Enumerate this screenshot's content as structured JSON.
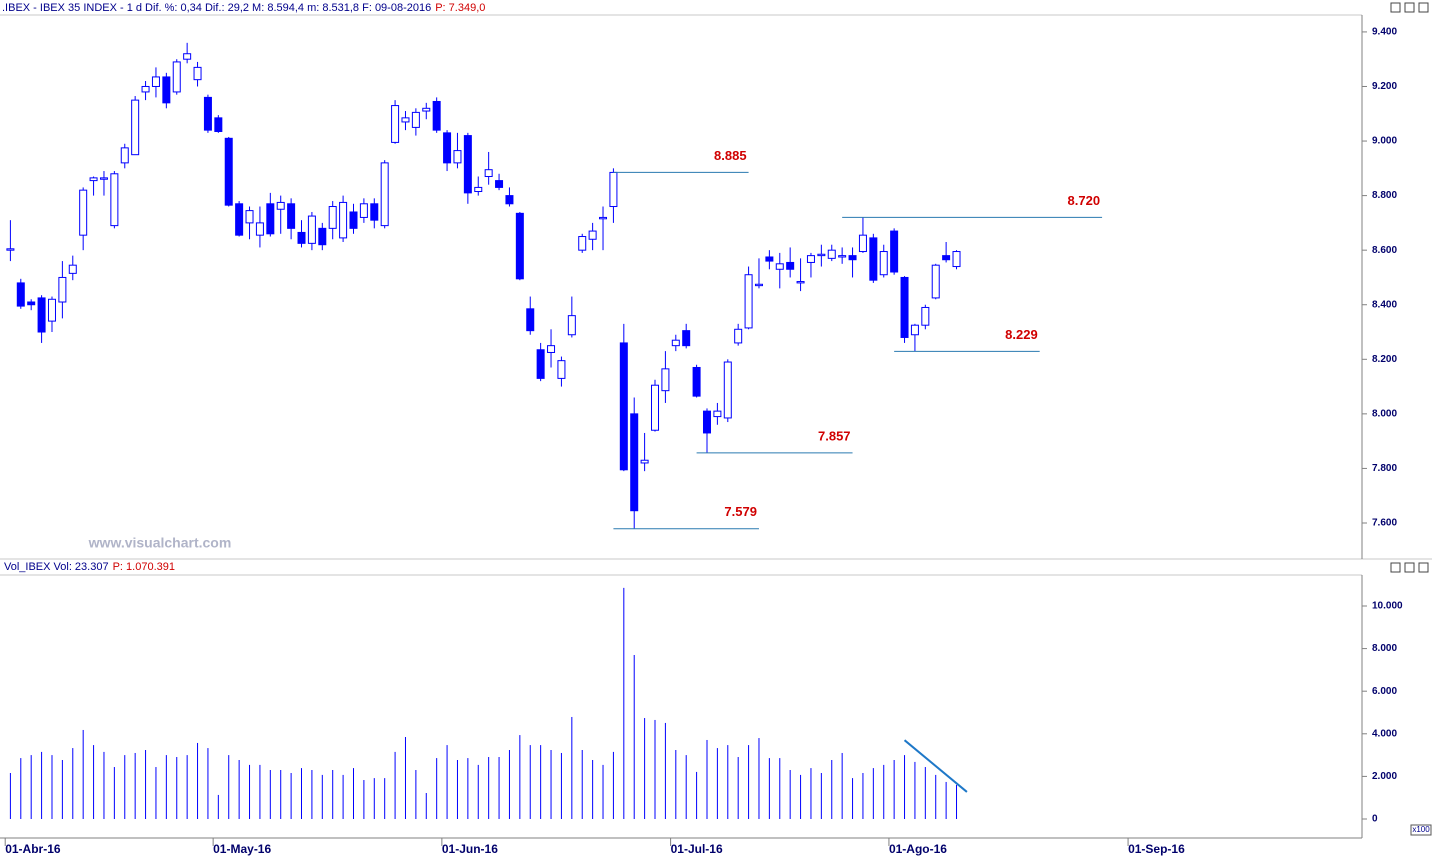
{
  "header": {
    "text": ".IBEX - IBEX 35 INDEX -  1 d  Dif. %: 0,34  Dif.: 29,2  M: 8.594,4  m: 8.531,8  F: 09-08-2016",
    "price": "P: 7.349,0"
  },
  "volume_header": {
    "text": "Vol_IBEX Vol: 23.307",
    "price": "P: 1.070.391"
  },
  "watermark": "www.visualchart.com",
  "unit_label": "x100",
  "chart_data": [
    {
      "type": "candlestick",
      "color": "#0000ff",
      "level_color": "#2a7ab0",
      "xlim": [
        -1,
        130
      ],
      "ylim": [
        7468,
        9462
      ],
      "yticks": [
        {
          "value": 9400,
          "label": "9.400"
        },
        {
          "value": 9200,
          "label": "9.200"
        },
        {
          "value": 9000,
          "label": "9.000"
        },
        {
          "value": 8800,
          "label": "8.800"
        },
        {
          "value": 8600,
          "label": "8.600"
        },
        {
          "value": 8400,
          "label": "8.400"
        },
        {
          "value": 8200,
          "label": "8.200"
        },
        {
          "value": 8000,
          "label": "8.000"
        },
        {
          "value": 7800,
          "label": "7.800"
        },
        {
          "value": 7600,
          "label": "7.600"
        }
      ],
      "open": [
        8600,
        8480,
        8410,
        8425,
        8340,
        8410,
        8515,
        8655,
        8855,
        8860,
        8690,
        8920,
        8950,
        9180,
        9200,
        9235,
        9180,
        9300,
        9225,
        9160,
        9085,
        9010,
        8770,
        8700,
        8655,
        8770,
        8750,
        8770,
        8665,
        8625,
        8680,
        8680,
        8645,
        8740,
        8720,
        8770,
        8690,
        8995,
        9070,
        9050,
        9110,
        9145,
        9030,
        8920,
        9020,
        8815,
        8870,
        8855,
        8800,
        8735,
        8385,
        8235,
        8225,
        8130,
        8290,
        8600,
        8640,
        8715,
        8760,
        8260,
        8000,
        7820,
        7940,
        8085,
        8250,
        8305,
        8170,
        8010,
        7990,
        7985,
        8260,
        8315,
        8470,
        8575,
        8530,
        8555,
        8480,
        8555,
        8580,
        8570,
        8575,
        8580,
        8595,
        8645,
        8510,
        8670,
        8500,
        8290,
        8325,
        8425,
        8580,
        8540
      ],
      "high": [
        8710,
        8495,
        8420,
        8435,
        8430,
        8560,
        8580,
        8830,
        8870,
        8890,
        8890,
        8990,
        9165,
        9220,
        9270,
        9250,
        9300,
        9360,
        9290,
        9170,
        9095,
        9015,
        8780,
        8760,
        8760,
        8810,
        8800,
        8790,
        8710,
        8740,
        8700,
        8780,
        8800,
        8770,
        8790,
        8790,
        8930,
        9150,
        9110,
        9120,
        9140,
        9160,
        9040,
        9030,
        9030,
        8870,
        8960,
        8880,
        8830,
        8740,
        8430,
        8260,
        8310,
        8210,
        8430,
        8660,
        8700,
        8760,
        8900,
        8330,
        8060,
        7930,
        8125,
        8230,
        8290,
        8330,
        8180,
        8020,
        8040,
        8200,
        8330,
        8540,
        8570,
        8600,
        8590,
        8610,
        8570,
        8590,
        8620,
        8620,
        8610,
        8610,
        8720,
        8660,
        8620,
        8680,
        8505,
        8330,
        8400,
        8550,
        8630,
        8600
      ],
      "low": [
        8560,
        8385,
        8380,
        8260,
        8300,
        8350,
        8490,
        8600,
        8800,
        8800,
        8680,
        8900,
        8950,
        9150,
        9160,
        9120,
        9170,
        9285,
        9200,
        9030,
        9030,
        8760,
        8650,
        8640,
        8610,
        8650,
        8660,
        8640,
        8610,
        8600,
        8600,
        8640,
        8630,
        8660,
        8700,
        8680,
        8680,
        8990,
        9040,
        9020,
        9080,
        9030,
        8890,
        8900,
        8770,
        8800,
        8840,
        8820,
        8760,
        8490,
        8290,
        8120,
        8170,
        8100,
        8280,
        8590,
        8600,
        8600,
        8700,
        7790,
        7579,
        7790,
        7935,
        8040,
        8230,
        8240,
        8060,
        7857,
        7960,
        7970,
        8250,
        8310,
        8460,
        8530,
        8460,
        8500,
        8450,
        8500,
        8540,
        8560,
        8550,
        8500,
        8590,
        8480,
        8500,
        8510,
        8260,
        8229,
        8310,
        8420,
        8555,
        8530
      ],
      "close": [
        8605,
        8395,
        8400,
        8300,
        8420,
        8500,
        8545,
        8820,
        8865,
        8865,
        8880,
        8975,
        9150,
        9200,
        9235,
        9140,
        9290,
        9320,
        9270,
        9040,
        9035,
        8765,
        8655,
        8745,
        8700,
        8660,
        8775,
        8680,
        8625,
        8725,
        8620,
        8760,
        8775,
        8680,
        8770,
        8710,
        8920,
        9130,
        9085,
        9105,
        9120,
        9040,
        8920,
        8965,
        8810,
        8830,
        8895,
        8830,
        8770,
        8495,
        8305,
        8130,
        8250,
        8195,
        8360,
        8650,
        8670,
        8720,
        8885,
        7795,
        7645,
        7830,
        8105,
        8165,
        8270,
        8250,
        8065,
        7930,
        8010,
        8190,
        8310,
        8510,
        8475,
        8560,
        8550,
        8530,
        8485,
        8580,
        8585,
        8600,
        8580,
        8565,
        8655,
        8490,
        8595,
        8520,
        8280,
        8325,
        8390,
        8545,
        8565,
        8595
      ],
      "levels": [
        {
          "value": 8885,
          "label": "8.885",
          "start": 58,
          "end": 71
        },
        {
          "value": 8720,
          "label": "8.720",
          "start": 80,
          "end": 105
        },
        {
          "value": 8229,
          "label": "8.229",
          "start": 85,
          "end": 99
        },
        {
          "value": 7857,
          "label": "7.857",
          "start": 66,
          "end": 81
        },
        {
          "value": 7579,
          "label": "7.579",
          "start": 58,
          "end": 72
        }
      ]
    },
    {
      "type": "bar",
      "color": "#0000ff",
      "trend_color": "#1e78c8",
      "xlim": [
        -1,
        130
      ],
      "ylim": [
        -892,
        11455
      ],
      "yticks": [
        {
          "value": 10000,
          "label": "10.000"
        },
        {
          "value": 8000,
          "label": "8.000"
        },
        {
          "value": 6000,
          "label": "6.000"
        },
        {
          "value": 4000,
          "label": "4.000"
        },
        {
          "value": 2000,
          "label": "2.000"
        },
        0
      ],
      "xticks": [
        {
          "value": -0.5,
          "label": "01-Abr-16"
        },
        {
          "value": 19.5,
          "label": "01-May-16"
        },
        {
          "value": 41.5,
          "label": "01-Jun-16"
        },
        {
          "value": 63.5,
          "label": "01-Jul-16"
        },
        {
          "value": 84.5,
          "label": "01-Ago-16"
        },
        {
          "value": 107.5,
          "label": "01-Sep-16"
        }
      ],
      "values": [
        2160,
        2860,
        3000,
        3150,
        3000,
        2770,
        3330,
        4180,
        3470,
        3150,
        2440,
        3000,
        3100,
        3240,
        2440,
        3000,
        2910,
        3000,
        3570,
        3330,
        1130,
        3000,
        2770,
        2540,
        2540,
        2300,
        2300,
        2160,
        2390,
        2300,
        2070,
        2300,
        2070,
        2390,
        1830,
        1920,
        1920,
        3150,
        3850,
        2300,
        1220,
        2860,
        3470,
        2770,
        2860,
        2540,
        2910,
        2910,
        3240,
        3940,
        3470,
        3470,
        3240,
        3100,
        4790,
        3240,
        2770,
        2540,
        3150,
        10850,
        7700,
        4740,
        4650,
        4510,
        3240,
        3000,
        2210,
        3710,
        3330,
        3470,
        2910,
        3470,
        3800,
        2860,
        2860,
        2300,
        2070,
        2390,
        2160,
        2770,
        3100,
        1920,
        2160,
        2390,
        2540,
        2770,
        3000,
        2680,
        2440,
        2070,
        1740,
        1600
      ],
      "trend_line": {
        "x": [
          86,
          92
        ],
        "values": [
          3700,
          1270
        ]
      }
    }
  ]
}
